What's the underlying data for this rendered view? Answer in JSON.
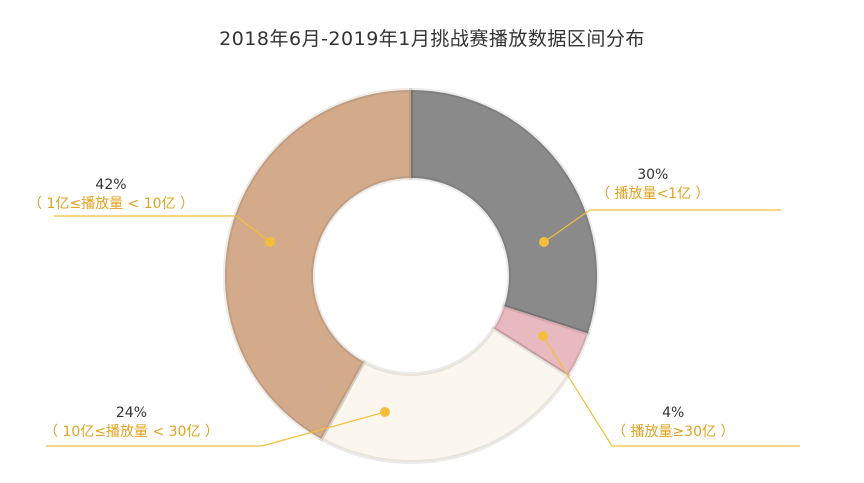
{
  "chart_data": {
    "type": "pie",
    "title": "2018年6月-2019年1月挑战赛播放数据区间分布",
    "slices": [
      {
        "percent_label": "30%",
        "label": "（ 播放量<1亿 ）",
        "value": 30,
        "color": "#8a8a8a"
      },
      {
        "percent_label": "4%",
        "label": "（ 播放量≥30亿 ）",
        "value": 4,
        "color": "#e8b9be"
      },
      {
        "percent_label": "24%",
        "label": "（ 10亿≤播放量 < 30亿 ）",
        "value": 24,
        "color": "#fcf7ee"
      },
      {
        "percent_label": "42%",
        "label": "（ 1亿≤播放量 < 10亿 ）",
        "value": 42,
        "color": "#d4ab8a"
      }
    ],
    "style": "donut",
    "legend": "none",
    "label_color": "#e0a320",
    "marker_color": "#f4be3c"
  }
}
